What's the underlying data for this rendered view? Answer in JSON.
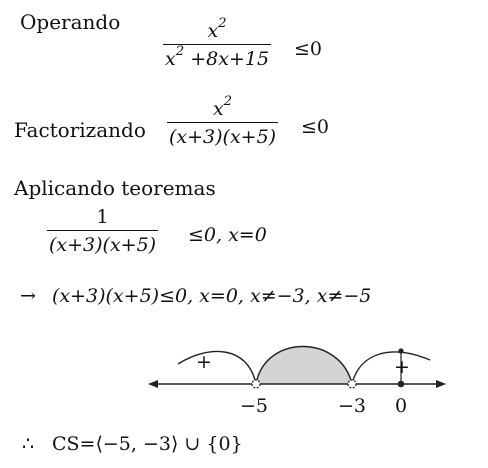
{
  "step1": {
    "label": "Operando",
    "numerator_base": "x",
    "numerator_exp": "2",
    "denominator_base": "x",
    "denominator_exp": "2",
    "denominator_rest": " +8x+15",
    "relation": "≤0"
  },
  "step2": {
    "label": "Factorizando",
    "numerator_base": "x",
    "numerator_exp": "2",
    "denominator": "(x+3)(x+5)",
    "relation": "≤0"
  },
  "step3": {
    "label": "Aplicando teoremas",
    "numerator": "1",
    "denominator": "(x+3)(x+5)",
    "relation": "≤0, x=0"
  },
  "step4": {
    "arrow": "→",
    "expression": "(x+3)(x+5)≤0, x=0, x≠−3, x≠−5"
  },
  "number_line": {
    "signs": [
      "+",
      "−",
      "+"
    ],
    "shaded_region_color": "#d4d4d4",
    "ticks": [
      {
        "label": "−5",
        "value": -5,
        "open": true
      },
      {
        "label": "−3",
        "value": -3,
        "open": true
      },
      {
        "label": "0",
        "value": 0,
        "open": false
      }
    ]
  },
  "conclusion": {
    "therefore": "∴",
    "text": "CS=⟨−5, −3⟩ ∪ {0}"
  }
}
